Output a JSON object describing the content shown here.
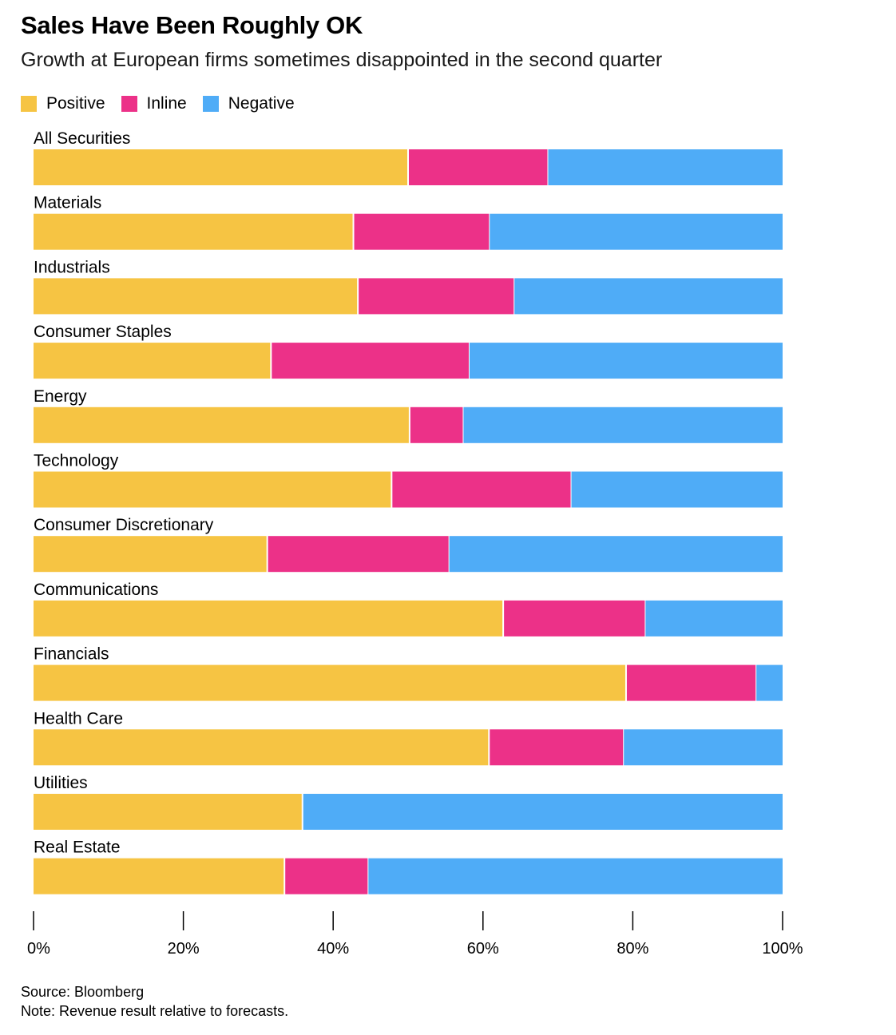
{
  "chart_data": {
    "type": "bar",
    "orientation": "horizontal",
    "stacked": true,
    "title": "Sales Have Been Roughly OK",
    "subtitle": "Growth at European firms sometimes disappointed in the second quarter",
    "legend_position": "top-left",
    "categories": [
      "All Securities",
      "Materials",
      "Industrials",
      "Consumer Staples",
      "Energy",
      "Technology",
      "Consumer Discretionary",
      "Communications",
      "Financials",
      "Health Care",
      "Utilities",
      "Real Estate"
    ],
    "series": [
      {
        "name": "Positive",
        "color": "#F6C443",
        "values": [
          50.0,
          42.7,
          43.3,
          31.7,
          50.2,
          47.8,
          31.2,
          62.7,
          79.1,
          60.8,
          35.9,
          33.5
        ]
      },
      {
        "name": "Inline",
        "color": "#EC3188",
        "values": [
          18.6,
          18.1,
          20.8,
          26.4,
          7.1,
          23.9,
          24.2,
          18.9,
          17.3,
          17.9,
          0,
          11.1
        ]
      },
      {
        "name": "Negative",
        "color": "#4FACF7",
        "values": [
          31.4,
          39.2,
          35.9,
          41.9,
          42.7,
          28.3,
          44.6,
          18.4,
          3.6,
          21.3,
          64.1,
          55.4
        ]
      }
    ],
    "xlim": [
      0,
      100
    ],
    "xticks": [
      0,
      20,
      40,
      60,
      80,
      100
    ],
    "xtick_labels": [
      "0%",
      "20%",
      "40%",
      "60%",
      "80%",
      "100%"
    ],
    "grid": false
  },
  "footer": {
    "source": "Source: Bloomberg",
    "note": "Note: Revenue result relative to forecasts."
  }
}
